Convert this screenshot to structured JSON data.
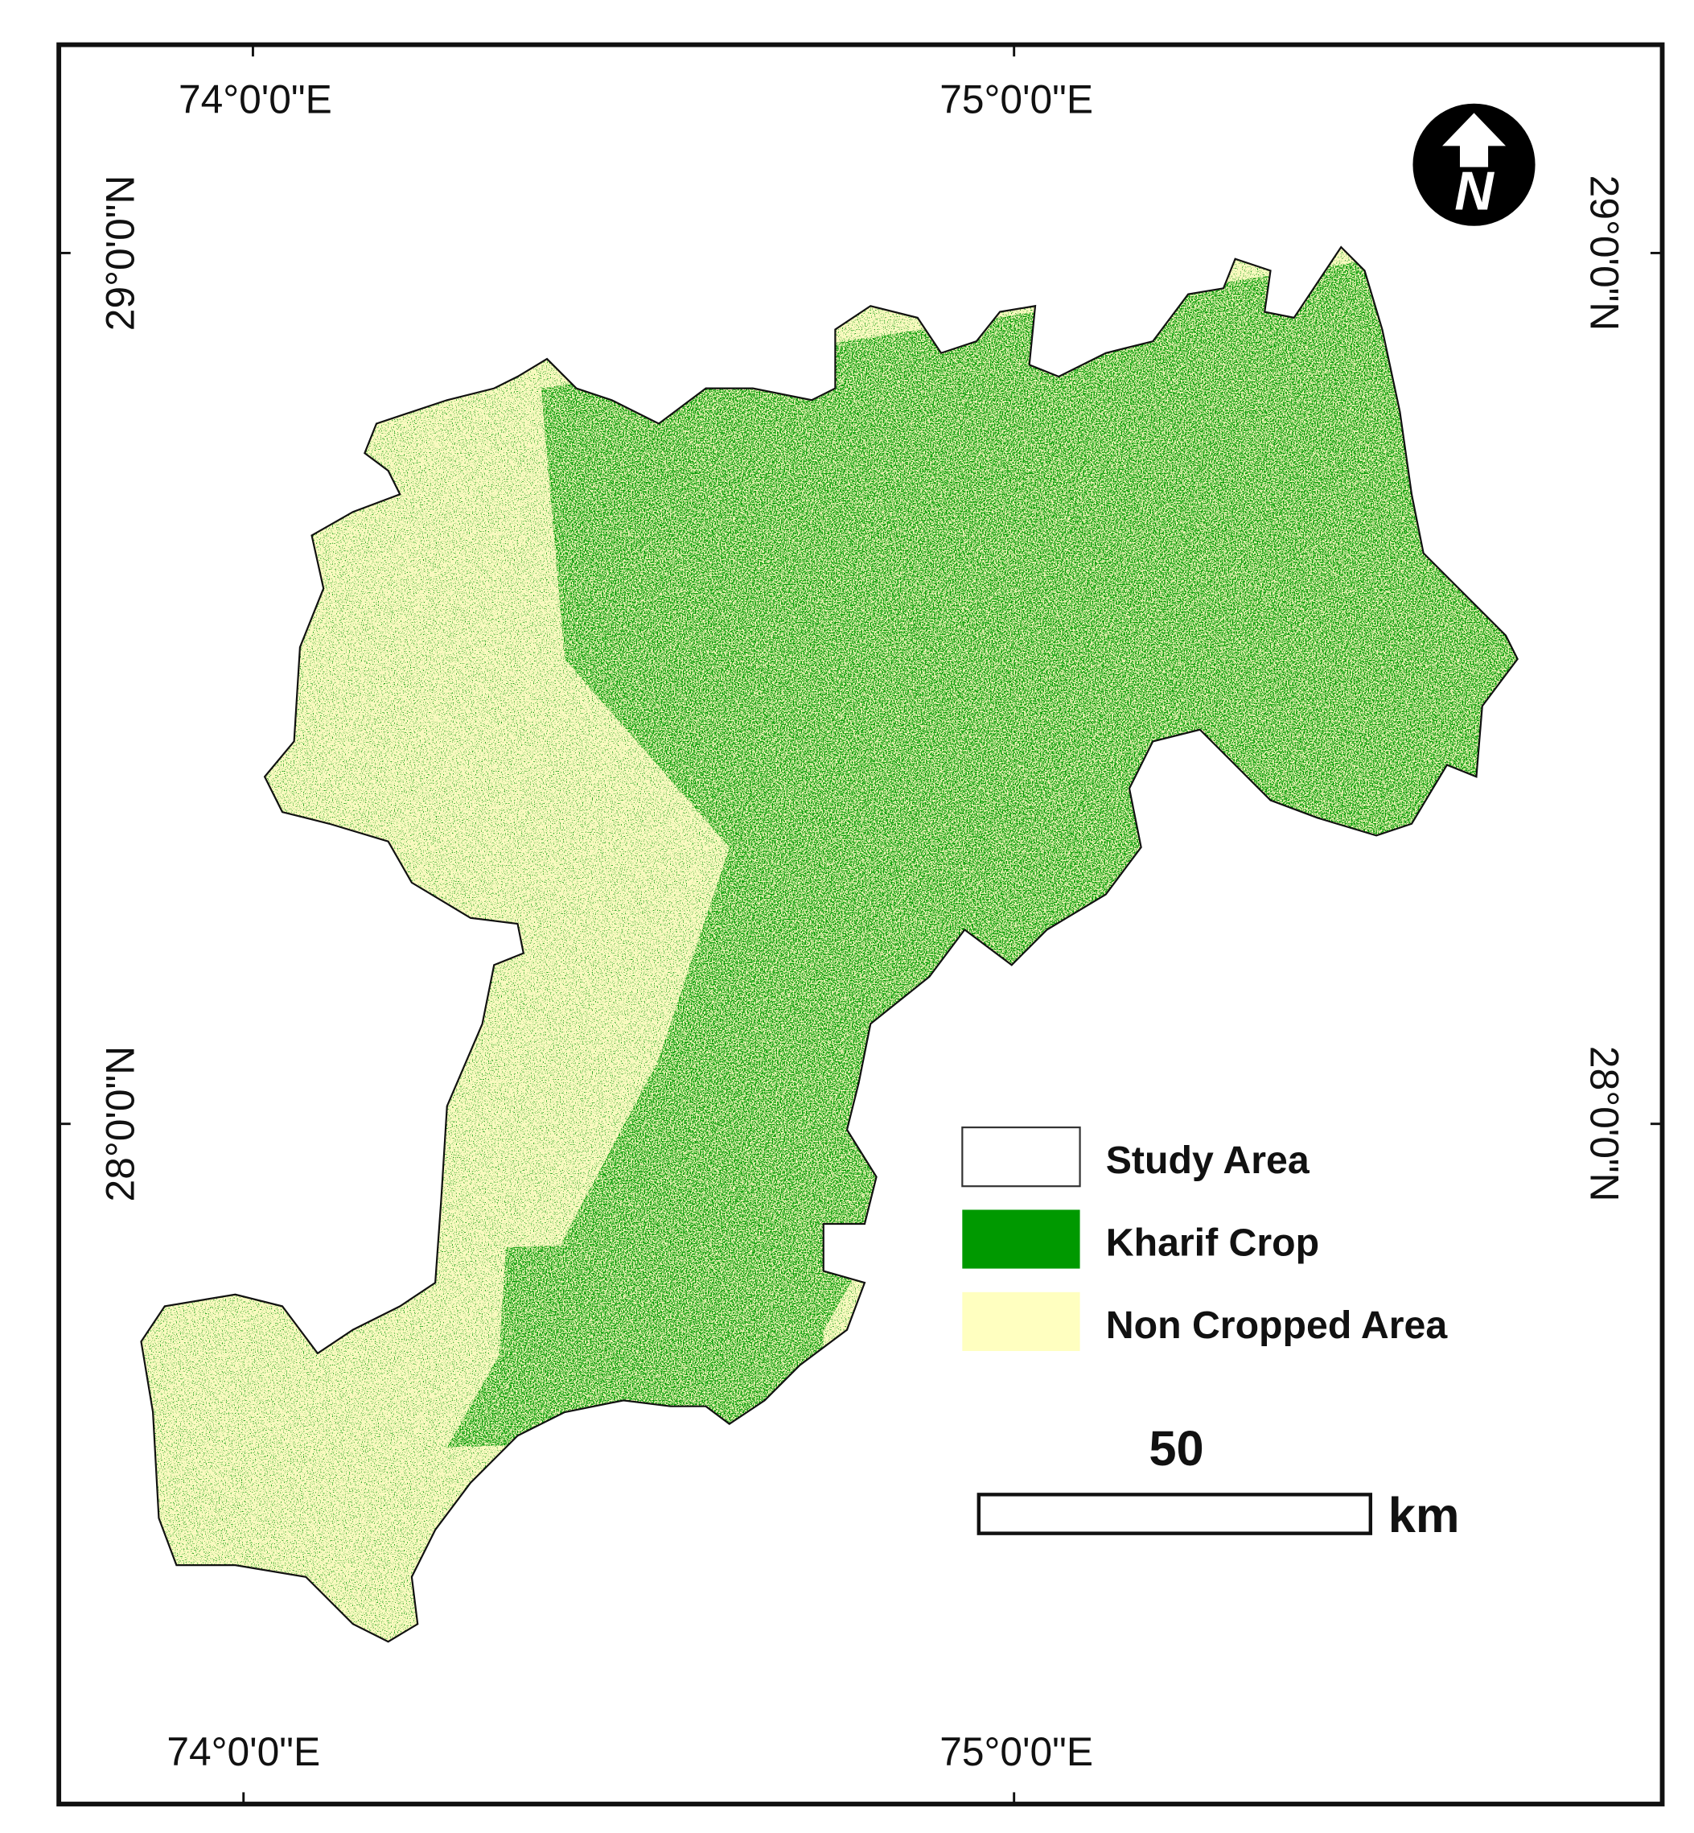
{
  "map": {
    "graticule": {
      "top": [
        "74°0'0\"E",
        "75°0'0\"E"
      ],
      "bottom": [
        "74°0'0\"E",
        "75°0'0\"E"
      ],
      "left": [
        "29°0'0\"N",
        "28°0'0\"N"
      ],
      "right": [
        "29°0'0\"N",
        "28°0'0\"N"
      ]
    },
    "north_arrow": "N",
    "legend": [
      "Study Area",
      "Kharif Crop",
      "Non Cropped Area"
    ],
    "scale_bar": {
      "value": "50",
      "unit": "km"
    }
  }
}
